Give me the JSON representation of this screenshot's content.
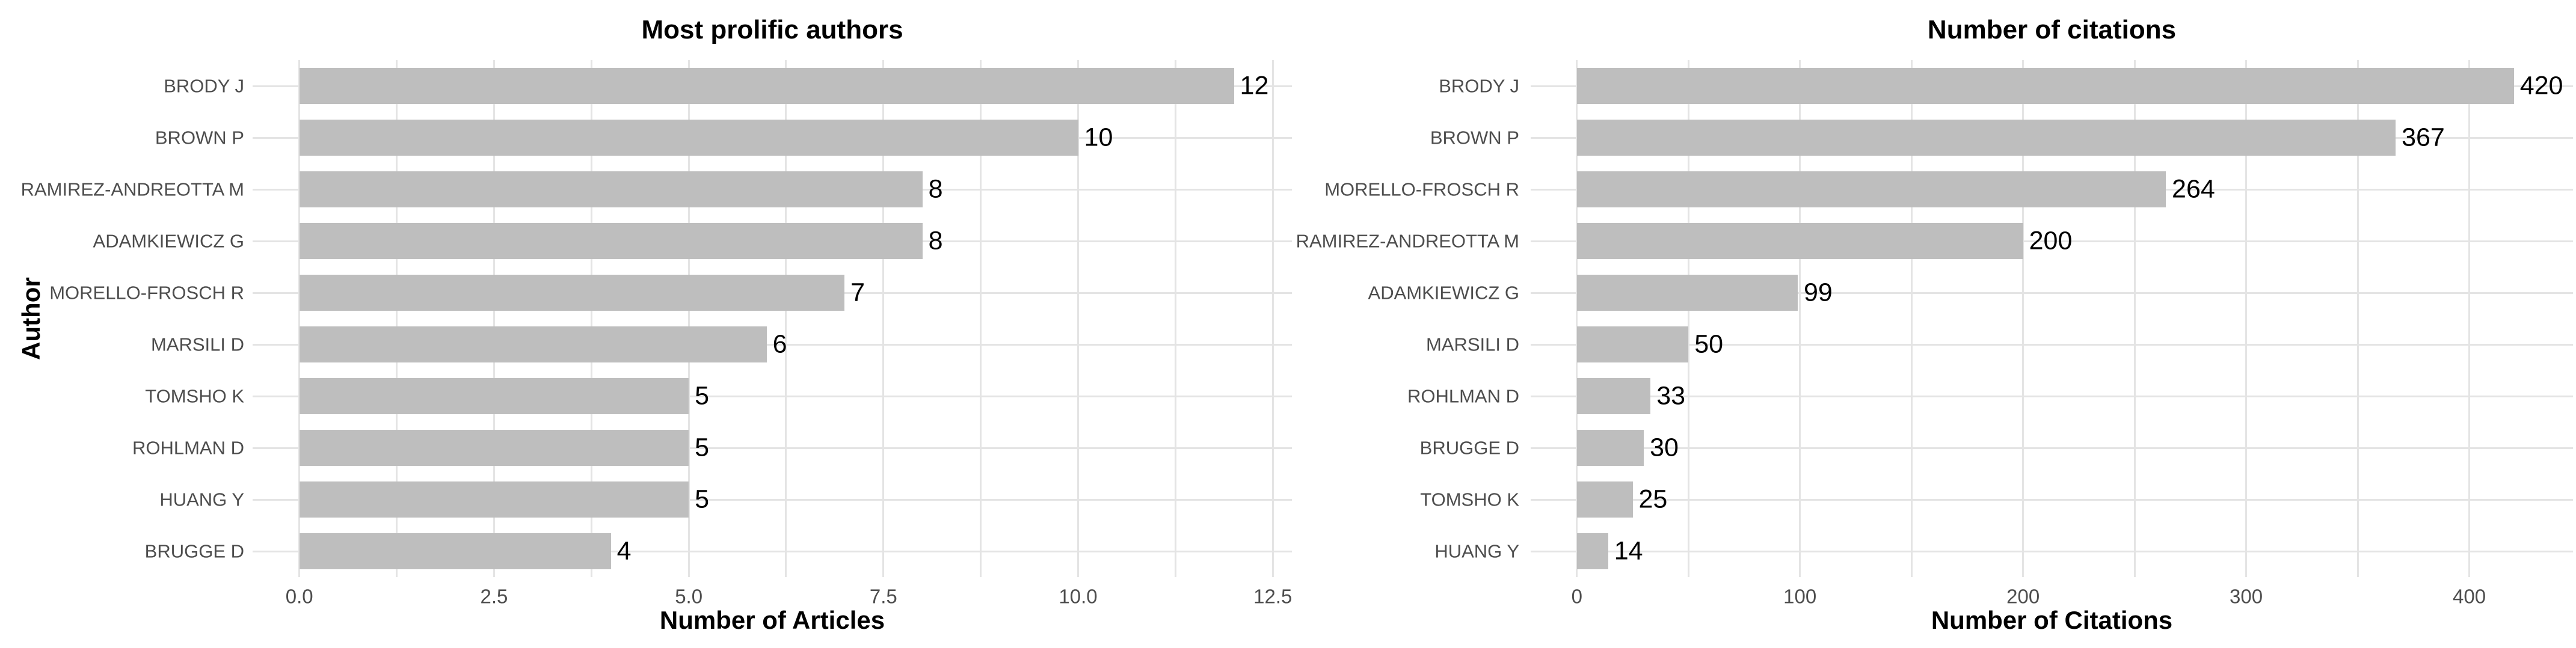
{
  "page": {
    "background": "#FFFFFF"
  },
  "colors": {
    "bar_fill": "#BEBEBE",
    "gridline": "#E4E4E4",
    "axis_text": "#4D4D4D",
    "title_text": "#000000",
    "value_label_text": "#000000"
  },
  "chart_data": [
    {
      "type": "bar",
      "orientation": "horizontal",
      "title": "Most prolific authors",
      "xlabel": "Number of Articles",
      "ylabel": "Author",
      "categories": [
        "BRODY J",
        "BROWN P",
        "RAMIREZ-ANDREOTTA M",
        "ADAMKIEWICZ G",
        "MORELLO-FROSCH R",
        "MARSILI D",
        "TOMSHO K",
        "ROHLMAN D",
        "HUANG Y",
        "BRUGGE D"
      ],
      "values": [
        12,
        10,
        8,
        8,
        7,
        6,
        5,
        5,
        5,
        4
      ],
      "value_labels": [
        "12",
        "10",
        "8",
        "8",
        "7",
        "6",
        "5",
        "5",
        "5",
        "4"
      ],
      "x_ticks": [
        0,
        2.5,
        5,
        7.5,
        10,
        12.5
      ],
      "x_tick_labels": [
        "0.0",
        "2.5",
        "5.0",
        "7.5",
        "10.0",
        "12.5"
      ],
      "x_minor_step": 1.25,
      "xlim": [
        -0.6,
        12.745
      ],
      "grid": true,
      "legend": false
    },
    {
      "type": "bar",
      "orientation": "horizontal",
      "title": "Number of citations",
      "xlabel": "Number of Citations",
      "ylabel": "",
      "categories": [
        "BRODY J",
        "BROWN P",
        "MORELLO-FROSCH R",
        "RAMIREZ-ANDREOTTA M",
        "ADAMKIEWICZ G",
        "MARSILI D",
        "ROHLMAN D",
        "BRUGGE D",
        "TOMSHO K",
        "HUANG Y"
      ],
      "values": [
        420,
        367,
        264,
        200,
        99,
        50,
        33,
        30,
        25,
        14
      ],
      "value_labels": [
        "420",
        "367",
        "264",
        "200",
        "99",
        "50",
        "33",
        "30",
        "25",
        "14"
      ],
      "x_ticks": [
        0,
        100,
        200,
        300,
        400
      ],
      "x_tick_labels": [
        "0",
        "100",
        "200",
        "300",
        "400"
      ],
      "x_minor_step": 50,
      "xlim": [
        -20.7,
        446.5
      ],
      "grid": true,
      "legend": false
    }
  ]
}
